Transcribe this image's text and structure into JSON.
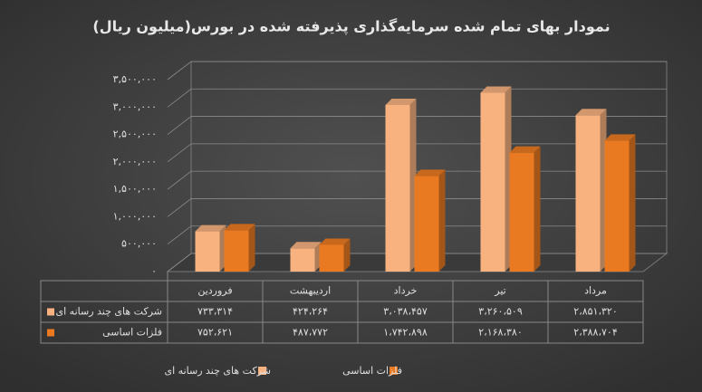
{
  "chart_data": {
    "type": "bar3d",
    "title": "نمودار بهای تمام شده سرمایه‌گذاری پذیرفته شده در بورس(میلیون ریال)",
    "categories": [
      "فروردین",
      "اردیبهشت",
      "خرداد",
      "تیر",
      "مرداد"
    ],
    "series": [
      {
        "name": "شرکت های چند رسانه ای",
        "color": "#f7b27f",
        "values": [
          733314,
          424264,
          3038457,
          3260509,
          2851320
        ],
        "value_labels": [
          "۷۳۳،۳۱۴",
          "۴۲۴،۲۶۴",
          "۳،۰۳۸،۴۵۷",
          "۳،۲۶۰،۵۰۹",
          "۲،۸۵۱،۳۲۰"
        ]
      },
      {
        "name": "فلزات اساسی",
        "color": "#ea7a22",
        "values": [
          752621,
          487772,
          1742898,
          2168380,
          2388704
        ],
        "value_labels": [
          "۷۵۲،۶۲۱",
          "۴۸۷،۷۷۲",
          "۱،۷۴۲،۸۹۸",
          "۲،۱۶۸،۳۸۰",
          "۲،۳۸۸،۷۰۴"
        ]
      }
    ],
    "ylim": [
      0,
      3500000
    ],
    "yticks": [
      {
        "value": 0,
        "label": "۰"
      },
      {
        "value": 500000,
        "label": "۵۰۰,۰۰۰"
      },
      {
        "value": 1000000,
        "label": "۱,۰۰۰,۰۰۰"
      },
      {
        "value": 1500000,
        "label": "۱,۵۰۰,۰۰۰"
      },
      {
        "value": 2000000,
        "label": "۲,۰۰۰,۰۰۰"
      },
      {
        "value": 2500000,
        "label": "۲,۵۰۰,۰۰۰"
      },
      {
        "value": 3000000,
        "label": "۳,۰۰۰,۰۰۰"
      },
      {
        "value": 3500000,
        "label": "۳,۵۰۰,۰۰۰"
      }
    ],
    "grid": true
  }
}
